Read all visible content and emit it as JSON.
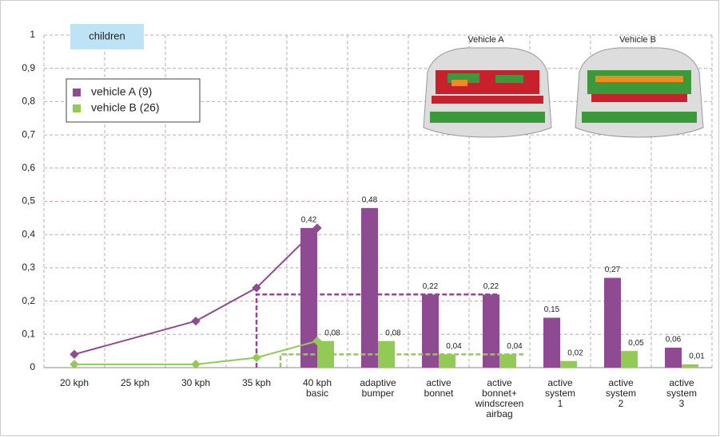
{
  "chart_data": {
    "type": "bar-line",
    "categories": [
      "20 kph",
      "25 kph",
      "30 kph",
      "35 kph",
      "40 kph\nbasic",
      "adaptive\nbumper",
      "active\nbonnet",
      "active\nbonnet+\nwindscreen\nairbag",
      "active\nsystem\n1",
      "active\nsystem\n2",
      "active\nsystem\n3"
    ],
    "series": [
      {
        "name": "vehicle A (9)",
        "color": "#8e4b92",
        "values": [
          null,
          null,
          null,
          null,
          0.42,
          0.48,
          0.22,
          0.22,
          0.15,
          0.27,
          0.06
        ],
        "value_labels": [
          null,
          null,
          null,
          null,
          "0,42",
          "0,48",
          "0,22",
          "0,22",
          "0,15",
          "0,27",
          "0,06"
        ],
        "line": [
          {
            "category": "20 kph",
            "value": 0.04
          },
          {
            "category": "30 kph",
            "value": 0.14
          },
          {
            "category": "35 kph",
            "value": 0.24
          },
          {
            "category": "40 kph\nbasic",
            "value": 0.42
          }
        ]
      },
      {
        "name": "vehicle B (26)",
        "color": "#93c955",
        "values": [
          null,
          null,
          null,
          null,
          0.08,
          0.08,
          0.04,
          0.04,
          0.02,
          0.05,
          0.01
        ],
        "value_labels": [
          null,
          null,
          null,
          null,
          "0,08",
          "0,08",
          "0,04",
          "0,04",
          "0,02",
          "0,05",
          "0,01"
        ],
        "line": [
          {
            "category": "20 kph",
            "value": 0.01
          },
          {
            "category": "30 kph",
            "value": 0.01
          },
          {
            "category": "35 kph",
            "value": 0.03
          },
          {
            "category": "40 kph\nbasic",
            "value": 0.08
          }
        ]
      }
    ],
    "reference_lines": [
      {
        "value": 0.22,
        "from": "35 kph",
        "to": "active\nbonnet+\nwindscreen\nairbag",
        "color": "#8e4b92"
      },
      {
        "value": 0.04,
        "from": "35 kph",
        "to": "active\nbonnet+\nwindscreen\nairbag",
        "color": "#93c955"
      }
    ],
    "ylim": [
      0,
      1
    ],
    "yticks": [
      0,
      {
        "value": 0.1,
        "label": "0,1"
      },
      {
        "value": 0.2,
        "label": "0,2"
      },
      {
        "value": 0.3,
        "label": "0,3"
      },
      {
        "value": 0.4,
        "label": "0,4"
      },
      {
        "value": 0.5,
        "label": "0,5"
      },
      {
        "value": 0.6,
        "label": "0,6"
      },
      {
        "value": 0.7,
        "label": "0,7"
      },
      {
        "value": 0.8,
        "label": "0,8"
      },
      {
        "value": 0.9,
        "label": "0,9"
      },
      1
    ],
    "grid": true,
    "legend": "upper-left",
    "annotations": {
      "group": "children",
      "image_labels": [
        "Vehicle A",
        "Vehicle B"
      ]
    }
  }
}
